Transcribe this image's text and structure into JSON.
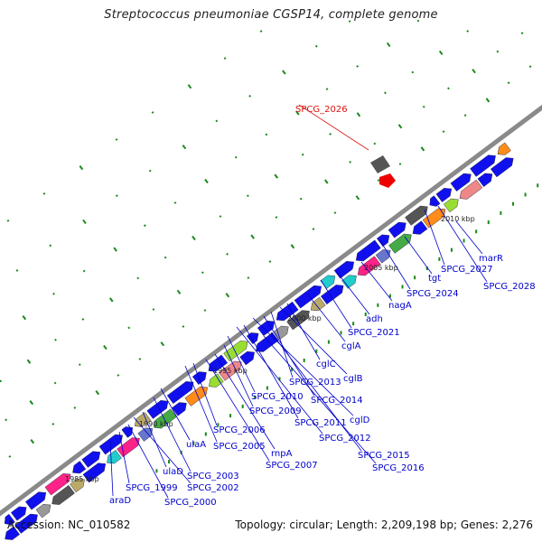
{
  "title": "Streptococcus pneumoniae CGSP14, complete genome",
  "footer": {
    "accession": "Accession: NC_010582",
    "summary": "Topology: circular; Length: 2,209,198 bp; Genes: 2,276"
  },
  "colors": {
    "backbone": "#8a8a8a",
    "gene_default": "#1010ee",
    "label_text": "#0000cc",
    "highlight_label": "#dd1111",
    "tick_green": "#1a8a1a"
  },
  "kbp_ticks": [
    "1985 kbp",
    "1990 kbp",
    "1995 kbp",
    "2000 kbp",
    "2005 kbp",
    "2010 kbp"
  ],
  "gene_labels": [
    {
      "text": "SPCG_2026",
      "highlight": true
    },
    {
      "text": "marR"
    },
    {
      "text": "SPCG_2027"
    },
    {
      "text": "SPCG_2028"
    },
    {
      "text": "tgt"
    },
    {
      "text": "SPCG_2024"
    },
    {
      "text": "nagA"
    },
    {
      "text": "adh"
    },
    {
      "text": "SPCG_2021"
    },
    {
      "text": "cglA"
    },
    {
      "text": "cglC"
    },
    {
      "text": "cglB"
    },
    {
      "text": "SPCG_2013"
    },
    {
      "text": "SPCG_2014"
    },
    {
      "text": "cglD"
    },
    {
      "text": "SPCG_2010"
    },
    {
      "text": "SPCG_2011"
    },
    {
      "text": "SPCG_2009"
    },
    {
      "text": "SPCG_2012"
    },
    {
      "text": "SPCG_2006"
    },
    {
      "text": "SPCG_2015"
    },
    {
      "text": "SPCG_2016"
    },
    {
      "text": "rnpA"
    },
    {
      "text": "SPCG_2005"
    },
    {
      "text": "SPCG_2007"
    },
    {
      "text": "ulaA"
    },
    {
      "text": "SPCG_2003"
    },
    {
      "text": "ulaD"
    },
    {
      "text": "SPCG_2002"
    },
    {
      "text": "SPCG_1999"
    },
    {
      "text": "SPCG_2000"
    },
    {
      "text": "araD"
    }
  ]
}
